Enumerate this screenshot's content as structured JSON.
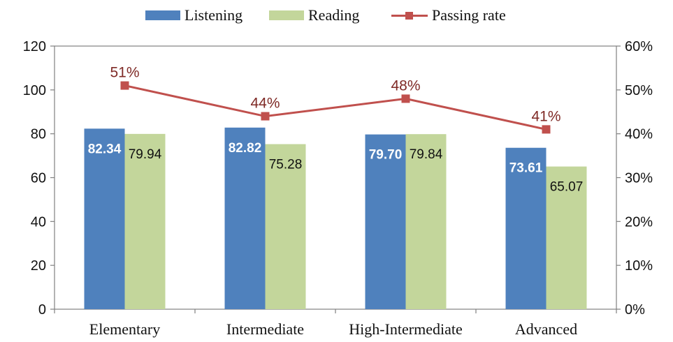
{
  "chart_data": {
    "type": "bar",
    "categories": [
      "Elementary",
      "Intermediate",
      "High-Intermediate",
      "Advanced"
    ],
    "series": [
      {
        "name": "Listening",
        "type": "bar",
        "axis": "left",
        "color": "#4F81BD",
        "values": [
          82.34,
          82.82,
          79.7,
          73.61
        ],
        "labels": [
          "82.34",
          "82.82",
          "79.70",
          "73.61"
        ]
      },
      {
        "name": "Reading",
        "type": "bar",
        "axis": "left",
        "color": "#C3D69B",
        "values": [
          79.94,
          75.28,
          79.84,
          65.07
        ],
        "labels": [
          "79.94",
          "75.28",
          "79.84",
          "65.07"
        ]
      },
      {
        "name": "Passing rate",
        "type": "line",
        "axis": "right",
        "color": "#C0504D",
        "values": [
          51,
          44,
          48,
          41
        ],
        "labels": [
          "51%",
          "44%",
          "48%",
          "41%"
        ]
      }
    ],
    "left_axis": {
      "min": 0,
      "max": 120,
      "ticks": [
        "0",
        "20",
        "40",
        "60",
        "80",
        "100",
        "120"
      ]
    },
    "right_axis": {
      "min": 0,
      "max": 60,
      "ticks": [
        "0%",
        "10%",
        "20%",
        "30%",
        "40%",
        "50%",
        "60%"
      ]
    },
    "legend_position": "top",
    "grid": false
  }
}
